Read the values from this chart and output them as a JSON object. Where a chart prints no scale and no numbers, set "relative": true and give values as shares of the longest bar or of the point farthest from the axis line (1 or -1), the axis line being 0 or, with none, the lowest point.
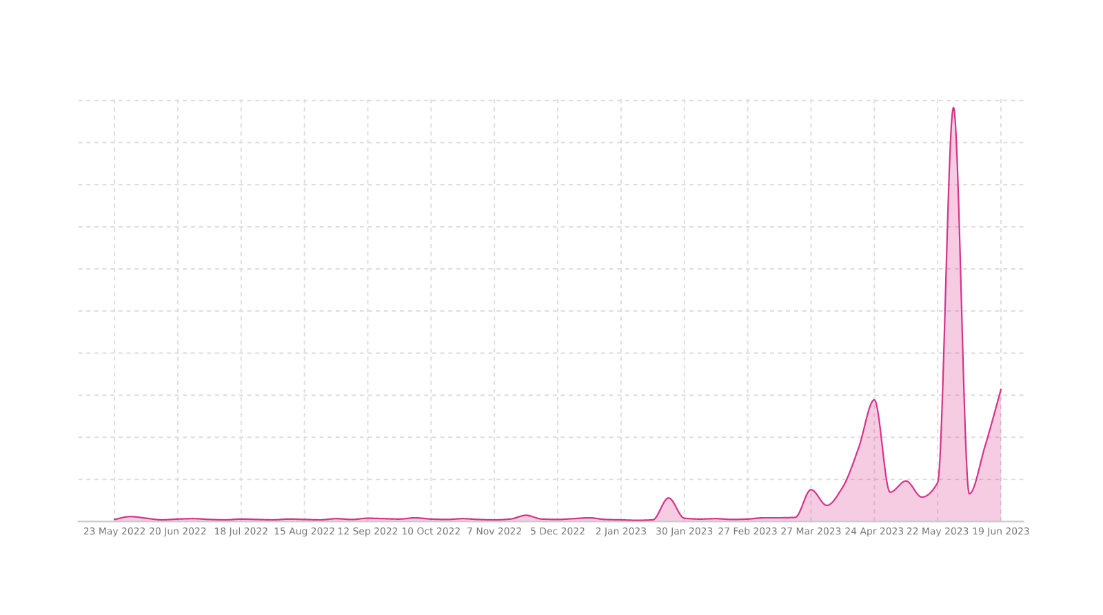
{
  "chart_data": {
    "type": "area",
    "relative": true,
    "grid": true,
    "line_style": "solid",
    "marker": "none",
    "x": [
      "2022-05-23",
      "2022-05-30",
      "2022-06-06",
      "2022-06-13",
      "2022-06-20",
      "2022-06-27",
      "2022-07-04",
      "2022-07-11",
      "2022-07-18",
      "2022-07-25",
      "2022-08-01",
      "2022-08-08",
      "2022-08-15",
      "2022-08-22",
      "2022-08-29",
      "2022-09-05",
      "2022-09-12",
      "2022-09-19",
      "2022-09-26",
      "2022-10-03",
      "2022-10-10",
      "2022-10-17",
      "2022-10-24",
      "2022-10-31",
      "2022-11-07",
      "2022-11-14",
      "2022-11-21",
      "2022-11-28",
      "2022-12-05",
      "2022-12-12",
      "2022-12-19",
      "2022-12-26",
      "2023-01-02",
      "2023-01-09",
      "2023-01-16",
      "2023-01-23",
      "2023-01-30",
      "2023-02-06",
      "2023-02-13",
      "2023-02-20",
      "2023-02-27",
      "2023-03-06",
      "2023-03-13",
      "2023-03-20",
      "2023-03-27",
      "2023-04-03",
      "2023-04-10",
      "2023-04-17",
      "2023-04-24",
      "2023-05-01",
      "2023-05-08",
      "2023-05-15",
      "2023-05-22",
      "2023-05-29",
      "2023-06-05",
      "2023-06-12",
      "2023-06-19"
    ],
    "series": [
      {
        "color": "#d6338a",
        "values": [
          0.005,
          0.012,
          0.008,
          0.004,
          0.006,
          0.007,
          0.005,
          0.004,
          0.006,
          0.005,
          0.004,
          0.006,
          0.005,
          0.004,
          0.007,
          0.005,
          0.008,
          0.007,
          0.006,
          0.009,
          0.006,
          0.005,
          0.007,
          0.005,
          0.004,
          0.006,
          0.015,
          0.006,
          0.005,
          0.007,
          0.009,
          0.005,
          0.004,
          0.003,
          0.004,
          0.057,
          0.008,
          0.006,
          0.007,
          0.005,
          0.006,
          0.009,
          0.009,
          0.01,
          0.077,
          0.039,
          0.083,
          0.177,
          0.294,
          0.071,
          0.098,
          0.059,
          0.094,
          1.0,
          0.067,
          0.183,
          0.319
        ]
      }
    ],
    "xlim": [
      "2022-05-07",
      "2023-06-29"
    ],
    "xticks": [
      {
        "value": "2022-05-23",
        "label": "23 May 2022"
      },
      {
        "value": "2022-06-20",
        "label": "20 Jun 2022"
      },
      {
        "value": "2022-07-18",
        "label": "18 Jul 2022"
      },
      {
        "value": "2022-08-15",
        "label": "15 Aug 2022"
      },
      {
        "value": "2022-09-12",
        "label": "12 Sep 2022"
      },
      {
        "value": "2022-10-10",
        "label": "10 Oct 2022"
      },
      {
        "value": "2022-11-07",
        "label": "7 Nov 2022"
      },
      {
        "value": "2022-12-05",
        "label": "5 Dec 2022"
      },
      {
        "value": "2023-01-02",
        "label": "2 Jan 2023"
      },
      {
        "value": "2023-01-30",
        "label": "30 Jan 2023"
      },
      {
        "value": "2023-02-27",
        "label": "27 Feb 2023"
      },
      {
        "value": "2023-03-27",
        "label": "27 Mar 2023"
      },
      {
        "value": "2023-04-24",
        "label": "24 Apr 2023"
      },
      {
        "value": "2023-05-22",
        "label": "22 May 2023"
      },
      {
        "value": "2023-06-19",
        "label": "19 Jun 2023"
      }
    ]
  }
}
